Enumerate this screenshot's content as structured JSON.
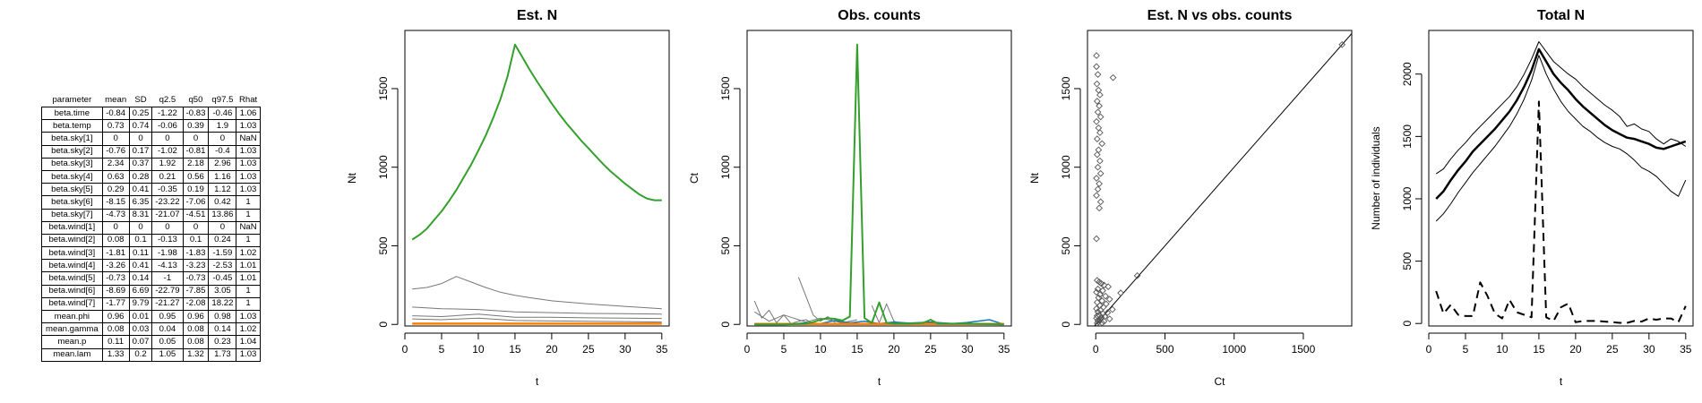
{
  "table": {
    "headers": [
      "parameter",
      "mean",
      "SD",
      "q2.5",
      "q50",
      "q97.5",
      "Rhat"
    ],
    "rows": [
      [
        "beta.time",
        "-0.84",
        "0.25",
        "-1.22",
        "-0.83",
        "-0.46",
        "1.06"
      ],
      [
        "beta.temp",
        "0.73",
        "0.74",
        "-0.06",
        "0.39",
        "1.9",
        "1.03"
      ],
      [
        "beta.sky[1]",
        "0",
        "0",
        "0",
        "0",
        "0",
        "NaN"
      ],
      [
        "beta.sky[2]",
        "-0.76",
        "0.17",
        "-1.02",
        "-0.81",
        "-0.4",
        "1.03"
      ],
      [
        "beta.sky[3]",
        "2.34",
        "0.37",
        "1.92",
        "2.18",
        "2.96",
        "1.03"
      ],
      [
        "beta.sky[4]",
        "0.63",
        "0.28",
        "0.21",
        "0.56",
        "1.16",
        "1.03"
      ],
      [
        "beta.sky[5]",
        "0.29",
        "0.41",
        "-0.35",
        "0.19",
        "1.12",
        "1.03"
      ],
      [
        "beta.sky[6]",
        "-8.15",
        "6.35",
        "-23.22",
        "-7.06",
        "0.42",
        "1"
      ],
      [
        "beta.sky[7]",
        "-4.73",
        "8.31",
        "-21.07",
        "-4.51",
        "13.86",
        "1"
      ],
      [
        "beta.wind[1]",
        "0",
        "0",
        "0",
        "0",
        "0",
        "NaN"
      ],
      [
        "beta.wind[2]",
        "0.08",
        "0.1",
        "-0.13",
        "0.1",
        "0.24",
        "1"
      ],
      [
        "beta.wind[3]",
        "-1.81",
        "0.11",
        "-1.98",
        "-1.83",
        "-1.59",
        "1.02"
      ],
      [
        "beta.wind[4]",
        "-3.26",
        "0.41",
        "-4.13",
        "-3.23",
        "-2.53",
        "1.01"
      ],
      [
        "beta.wind[5]",
        "-0.73",
        "0.14",
        "-1",
        "-0.73",
        "-0.45",
        "1.01"
      ],
      [
        "beta.wind[6]",
        "-8.69",
        "6.69",
        "-22.79",
        "-7.85",
        "3.05",
        "1"
      ],
      [
        "beta.wind[7]",
        "-1.77",
        "9.79",
        "-21.27",
        "-2.08",
        "18.22",
        "1"
      ],
      [
        "mean.phi",
        "0.96",
        "0.01",
        "0.95",
        "0.96",
        "0.98",
        "1.03"
      ],
      [
        "mean.gamma",
        "0.08",
        "0.03",
        "0.04",
        "0.08",
        "0.14",
        "1.02"
      ],
      [
        "mean.p",
        "0.11",
        "0.07",
        "0.05",
        "0.08",
        "0.23",
        "1.04"
      ],
      [
        "mean.lam",
        "1.33",
        "0.2",
        "1.05",
        "1.32",
        "1.73",
        "1.03"
      ]
    ]
  },
  "chart_data": [
    {
      "type": "line",
      "title": "Est. N",
      "xlabel": "t",
      "ylabel": "Nt",
      "xlim": [
        0,
        36
      ],
      "ylim": [
        -10,
        1870
      ],
      "xticks": [
        0,
        5,
        10,
        15,
        20,
        25,
        30,
        35
      ],
      "yticks": [
        0,
        500,
        1000,
        1500
      ],
      "colors": {
        "green": "#33a02c",
        "grey": "#777777",
        "orange": "#ff7f00"
      },
      "series": [
        {
          "color": "green",
          "width": 2,
          "x": [
            1,
            2,
            3,
            4,
            5,
            6,
            7,
            8,
            9,
            10,
            11,
            12,
            13,
            14,
            15,
            16,
            17,
            18,
            19,
            20,
            21,
            22,
            23,
            24,
            25,
            26,
            27,
            28,
            29,
            30,
            31,
            32,
            33,
            34,
            35
          ],
          "values": [
            540,
            570,
            610,
            665,
            720,
            785,
            855,
            935,
            1015,
            1105,
            1200,
            1310,
            1430,
            1580,
            1780,
            1700,
            1620,
            1545,
            1475,
            1405,
            1340,
            1280,
            1225,
            1170,
            1120,
            1070,
            1020,
            975,
            935,
            895,
            860,
            825,
            800,
            790,
            790
          ]
        },
        {
          "color": "grey",
          "width": 1,
          "x": [
            1,
            3,
            5,
            7,
            9,
            11,
            13,
            15,
            17,
            20,
            25,
            30,
            35
          ],
          "values": [
            225,
            235,
            260,
            305,
            270,
            235,
            205,
            185,
            170,
            150,
            130,
            115,
            100
          ]
        },
        {
          "color": "grey",
          "width": 1,
          "x": [
            1,
            5,
            10,
            15,
            20,
            25,
            30,
            35
          ],
          "values": [
            110,
            100,
            95,
            80,
            75,
            70,
            68,
            65
          ]
        },
        {
          "color": "grey",
          "width": 1,
          "x": [
            1,
            5,
            10,
            15,
            20,
            25,
            30,
            35
          ],
          "values": [
            55,
            50,
            65,
            45,
            45,
            42,
            40,
            38
          ]
        },
        {
          "color": "grey",
          "width": 1,
          "x": [
            1,
            5,
            10,
            15,
            20,
            25,
            30,
            35
          ],
          "values": [
            35,
            30,
            40,
            25,
            22,
            20,
            18,
            15
          ]
        },
        {
          "color": "orange",
          "width": 2.5,
          "x": [
            1,
            35
          ],
          "values": [
            5,
            5
          ]
        }
      ]
    },
    {
      "type": "line",
      "title": "Obs. counts",
      "xlabel": "t",
      "ylabel": "Ct",
      "xlim": [
        0,
        36
      ],
      "ylim": [
        -10,
        1870
      ],
      "xticks": [
        0,
        5,
        10,
        15,
        20,
        25,
        30,
        35
      ],
      "yticks": [
        0,
        500,
        1000,
        1500
      ],
      "colors": {
        "green": "#33a02c",
        "grey": "#777777",
        "orange": "#ff7f00",
        "blue": "#1f78b4"
      },
      "series": [
        {
          "color": "grey",
          "width": 1,
          "x": [
            1,
            2,
            3,
            4,
            5,
            6,
            7,
            8,
            9,
            10
          ],
          "values": [
            150,
            40,
            90,
            10,
            60,
            5,
            20,
            30,
            5,
            0
          ]
        },
        {
          "color": "grey",
          "width": 1,
          "x": [
            7,
            8,
            9,
            10,
            11,
            12
          ],
          "values": [
            300,
            180,
            60,
            20,
            50,
            10
          ]
        },
        {
          "color": "grey",
          "width": 1,
          "x": [
            17,
            18,
            19,
            20,
            21
          ],
          "values": [
            120,
            10,
            130,
            20,
            5
          ]
        },
        {
          "color": "grey",
          "width": 1,
          "x": [
            1,
            3,
            5,
            8,
            10,
            13,
            15
          ],
          "values": [
            80,
            20,
            60,
            15,
            40,
            10,
            30
          ]
        },
        {
          "color": "blue",
          "width": 1.5,
          "x": [
            1,
            5,
            8,
            10,
            12,
            14,
            16,
            18,
            20,
            22,
            25,
            28,
            30,
            33,
            35
          ],
          "values": [
            0,
            0,
            10,
            5,
            25,
            10,
            20,
            5,
            15,
            8,
            15,
            5,
            12,
            30,
            0
          ]
        },
        {
          "color": "orange",
          "width": 2.5,
          "x": [
            1,
            35
          ],
          "values": [
            3,
            3
          ]
        },
        {
          "color": "green",
          "width": 2,
          "x": [
            1,
            5,
            8,
            9,
            10,
            11,
            12,
            13,
            14,
            15,
            16,
            17,
            18,
            19,
            20,
            22,
            24,
            25,
            26,
            28,
            30,
            35
          ],
          "values": [
            0,
            0,
            5,
            15,
            30,
            40,
            35,
            25,
            50,
            1780,
            40,
            10,
            140,
            10,
            5,
            5,
            10,
            30,
            5,
            5,
            5,
            0
          ]
        }
      ]
    },
    {
      "type": "scatter",
      "title": "Est. N vs obs. counts",
      "xlabel": "Ct",
      "ylabel": "Nt",
      "xlim": [
        -60,
        1850
      ],
      "ylim": [
        -10,
        1870
      ],
      "xticks": [
        0,
        500,
        1000,
        1500
      ],
      "yticks": [
        0,
        500,
        1000,
        1500
      ],
      "reference_line": [
        [
          -60,
          -60
        ],
        [
          1850,
          1850
        ]
      ],
      "points": [
        [
          5,
          1710
        ],
        [
          5,
          1640
        ],
        [
          15,
          1590
        ],
        [
          125,
          1570
        ],
        [
          8,
          1530
        ],
        [
          20,
          1490
        ],
        [
          30,
          1460
        ],
        [
          10,
          1420
        ],
        [
          25,
          1390
        ],
        [
          15,
          1350
        ],
        [
          35,
          1320
        ],
        [
          5,
          1290
        ],
        [
          20,
          1250
        ],
        [
          30,
          1220
        ],
        [
          10,
          1180
        ],
        [
          45,
          1150
        ],
        [
          20,
          1110
        ],
        [
          10,
          1080
        ],
        [
          30,
          1040
        ],
        [
          15,
          1000
        ],
        [
          35,
          960
        ],
        [
          5,
          930
        ],
        [
          25,
          895
        ],
        [
          15,
          860
        ],
        [
          5,
          820
        ],
        [
          35,
          780
        ],
        [
          25,
          740
        ],
        [
          5,
          545
        ],
        [
          10,
          280
        ],
        [
          25,
          270
        ],
        [
          40,
          260
        ],
        [
          60,
          250
        ],
        [
          90,
          240
        ],
        [
          15,
          225
        ],
        [
          50,
          215
        ],
        [
          5,
          205
        ],
        [
          30,
          190
        ],
        [
          70,
          180
        ],
        [
          20,
          170
        ],
        [
          100,
          160
        ],
        [
          45,
          150
        ],
        [
          10,
          140
        ],
        [
          75,
          130
        ],
        [
          30,
          120
        ],
        [
          55,
          110
        ],
        [
          5,
          100
        ],
        [
          120,
          95
        ],
        [
          35,
          90
        ],
        [
          15,
          80
        ],
        [
          85,
          75
        ],
        [
          50,
          70
        ],
        [
          25,
          60
        ],
        [
          10,
          55
        ],
        [
          65,
          50
        ],
        [
          40,
          45
        ],
        [
          5,
          40
        ],
        [
          100,
          35
        ],
        [
          30,
          30
        ],
        [
          15,
          25
        ],
        [
          60,
          20
        ],
        [
          20,
          15
        ],
        [
          45,
          10
        ],
        [
          10,
          8
        ],
        [
          180,
          200
        ],
        [
          300,
          310
        ],
        [
          1780,
          1780
        ]
      ]
    },
    {
      "type": "line",
      "title": "Total N",
      "xlabel": "t",
      "ylabel": "Number of individuals",
      "xlim": [
        0,
        36
      ],
      "ylim": [
        -20,
        2350
      ],
      "xticks": [
        0,
        5,
        10,
        15,
        20,
        25,
        30,
        35
      ],
      "yticks": [
        0,
        500,
        1000,
        1500,
        2000
      ],
      "series": [
        {
          "name": "",
          "style": "solid",
          "width": 1,
          "x": [
            1,
            2,
            3,
            4,
            5,
            6,
            7,
            8,
            9,
            10,
            11,
            12,
            13,
            14,
            15,
            16,
            17,
            18,
            19,
            20,
            21,
            22,
            23,
            24,
            25,
            26,
            27,
            28,
            29,
            30,
            31,
            32,
            33,
            34,
            35
          ],
          "values": [
            1200,
            1240,
            1320,
            1390,
            1450,
            1520,
            1580,
            1640,
            1700,
            1760,
            1820,
            1900,
            2000,
            2120,
            2260,
            2180,
            2100,
            2050,
            2000,
            1960,
            1900,
            1850,
            1800,
            1750,
            1710,
            1660,
            1580,
            1600,
            1560,
            1540,
            1480,
            1440,
            1480,
            1460,
            1420
          ]
        },
        {
          "name": "",
          "style": "solid",
          "width": 2.5,
          "x": [
            1,
            2,
            3,
            4,
            5,
            6,
            7,
            8,
            9,
            10,
            11,
            12,
            13,
            14,
            15,
            16,
            17,
            18,
            19,
            20,
            21,
            22,
            23,
            24,
            25,
            26,
            27,
            28,
            29,
            30,
            31,
            32,
            33,
            34,
            35
          ],
          "values": [
            1000,
            1060,
            1150,
            1230,
            1300,
            1380,
            1440,
            1500,
            1560,
            1630,
            1700,
            1790,
            1900,
            2030,
            2200,
            2100,
            2000,
            1930,
            1870,
            1800,
            1740,
            1690,
            1640,
            1590,
            1550,
            1520,
            1490,
            1480,
            1460,
            1440,
            1410,
            1400,
            1420,
            1440,
            1460
          ]
        },
        {
          "name": "",
          "style": "solid",
          "width": 1,
          "x": [
            1,
            2,
            3,
            4,
            5,
            6,
            7,
            8,
            9,
            10,
            11,
            12,
            13,
            14,
            15,
            16,
            17,
            18,
            19,
            20,
            21,
            22,
            23,
            24,
            25,
            26,
            27,
            28,
            29,
            30,
            31,
            32,
            33,
            34,
            35
          ],
          "values": [
            820,
            880,
            960,
            1050,
            1130,
            1210,
            1280,
            1350,
            1420,
            1500,
            1580,
            1680,
            1800,
            1950,
            2150,
            2000,
            1880,
            1780,
            1700,
            1640,
            1580,
            1540,
            1490,
            1450,
            1420,
            1400,
            1360,
            1310,
            1250,
            1220,
            1180,
            1120,
            1060,
            1020,
            1150
          ]
        },
        {
          "name": "",
          "style": "dashed",
          "width": 2,
          "x": [
            1,
            2,
            3,
            4,
            5,
            6,
            7,
            8,
            9,
            10,
            11,
            12,
            13,
            14,
            15,
            16,
            17,
            18,
            19,
            20,
            21,
            22,
            23,
            24,
            25,
            26,
            27,
            28,
            29,
            30,
            31,
            32,
            33,
            34,
            35
          ],
          "values": [
            260,
            80,
            150,
            70,
            60,
            60,
            330,
            220,
            80,
            40,
            190,
            90,
            70,
            50,
            1780,
            50,
            20,
            130,
            160,
            10,
            20,
            20,
            20,
            15,
            10,
            5,
            5,
            20,
            15,
            40,
            30,
            40,
            40,
            10,
            140
          ]
        }
      ]
    }
  ]
}
